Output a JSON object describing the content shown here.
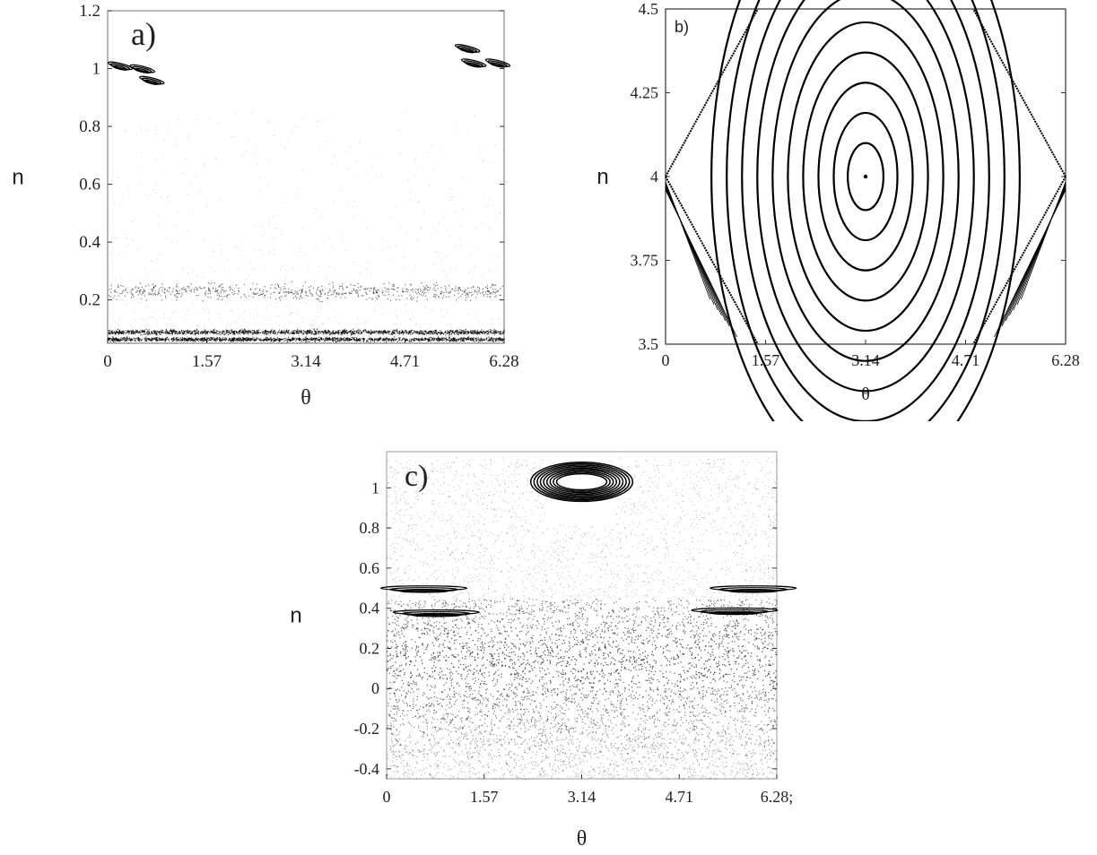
{
  "chart_data": [
    {
      "id": "a",
      "type": "scatter",
      "panel_label": "a)",
      "xlabel": "θ",
      "ylabel": "n",
      "xlim": [
        0,
        6.28
      ],
      "ylim": [
        0.05,
        1.2
      ],
      "xticks": [
        0,
        1.57,
        3.14,
        4.71,
        6.28
      ],
      "yticks": [
        0.2,
        0.4,
        0.6,
        0.8,
        1,
        1.2
      ],
      "xtick_labels": [
        "0",
        "1.57",
        "3.14",
        "4.71",
        "6.28"
      ],
      "ytick_labels": [
        "0.2",
        "0.4",
        "0.6",
        "0.8",
        "1",
        "1.2"
      ],
      "features": {
        "islands": [
          {
            "theta": 0.2,
            "n": 1.01
          },
          {
            "theta": 0.55,
            "n": 1.0
          },
          {
            "theta": 0.7,
            "n": 0.96
          },
          {
            "theta": 5.7,
            "n": 1.07
          },
          {
            "theta": 5.8,
            "n": 1.02
          },
          {
            "theta": 6.18,
            "n": 1.02
          }
        ],
        "chaotic_bands": [
          {
            "n_center": 0.23,
            "n_halfwidth": 0.04,
            "density": 0.5
          },
          {
            "n_center": 0.09,
            "n_halfwidth": 0.012,
            "density": 1.0
          },
          {
            "n_center": 0.065,
            "n_halfwidth": 0.01,
            "density": 1.0
          }
        ]
      }
    },
    {
      "id": "b",
      "type": "line",
      "panel_label": "b)",
      "xlabel": "θ",
      "ylabel": "n",
      "xlim": [
        0,
        6.28
      ],
      "ylim": [
        3.5,
        4.5
      ],
      "xticks": [
        0,
        1.57,
        3.14,
        4.71,
        6.28
      ],
      "yticks": [
        3.5,
        3.75,
        4,
        4.25,
        4.5
      ],
      "xtick_labels": [
        "0",
        "1.57",
        "3.14",
        "4.71",
        "6.28"
      ],
      "ytick_labels": [
        "3.5",
        "3.75",
        "4",
        "4.25",
        "4.5"
      ],
      "features": {
        "center": {
          "theta": 3.14,
          "n": 4.0
        },
        "orbit_half_widths": [
          0.28,
          0.5,
          0.74,
          0.98,
          1.22,
          1.46,
          1.7,
          1.94,
          2.18,
          2.42
        ],
        "orbit_half_heights": [
          0.1,
          0.19,
          0.28,
          0.37,
          0.46,
          0.55,
          0.64,
          0.73,
          0.82,
          0.91
        ],
        "separatrix_n_at_edge": 4.0
      }
    },
    {
      "id": "c",
      "type": "scatter",
      "panel_label": "c)",
      "xlabel": "θ",
      "ylabel": "n",
      "xlim": [
        0,
        6.28
      ],
      "ylim": [
        -0.45,
        1.18
      ],
      "xticks": [
        0,
        1.57,
        3.14,
        4.71,
        6.28
      ],
      "yticks": [
        -0.4,
        -0.2,
        0,
        0.2,
        0.4,
        0.6,
        0.8,
        1
      ],
      "xtick_labels": [
        "0",
        "1.57",
        "3.14",
        "4.71",
        "6.28;"
      ],
      "ytick_labels": [
        "-0.4",
        "-0.2",
        "0",
        "0.2",
        "0.4",
        "0.6",
        "0.8",
        "1"
      ],
      "features": {
        "island": {
          "theta": 3.14,
          "n": 1.03
        },
        "resonance_bands": [
          {
            "theta": 0.6,
            "n": 0.5
          },
          {
            "theta": 5.9,
            "n": 0.5
          },
          {
            "theta": 0.8,
            "n": 0.38
          },
          {
            "theta": 5.6,
            "n": 0.39
          }
        ],
        "chaotic_sea": {
          "n_min": -0.45,
          "n_max": 0.45
        }
      }
    }
  ]
}
